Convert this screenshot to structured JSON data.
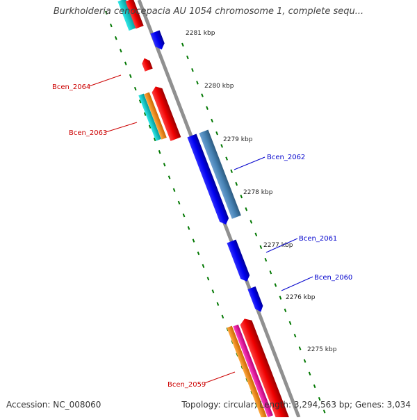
{
  "title": "Burkholderia cenocepacia AU 1054 chromosome 1, complete sequ...",
  "footer": {
    "accession": "Accession: NC_008060",
    "summary": "Topology: circular; Length: 3,294,563 bp; Genes: 3,034"
  },
  "colors": {
    "backbone": "#909090",
    "forward_gene": "#0000ee",
    "forward_gene_alt": "#4682b4",
    "reverse_gene": "#ee0000",
    "cyan_feature": "#00cccc",
    "orange_feature": "#ff8800",
    "magenta_feature": "#ff00aa",
    "tick": "#007700",
    "label_forward": "#0000cc",
    "label_reverse": "#cc0000"
  },
  "scale_labels": [
    "2281 kbp",
    "2280 kbp",
    "2279 kbp",
    "2278 kbp",
    "2277 kbp",
    "2276 kbp",
    "2275 kbp"
  ],
  "gene_labels": {
    "forward": [
      "Bcen_2062",
      "Bcen_2061",
      "Bcen_2060"
    ],
    "reverse": [
      "Bcen_2064",
      "Bcen_2063",
      "Bcen_2059"
    ]
  }
}
